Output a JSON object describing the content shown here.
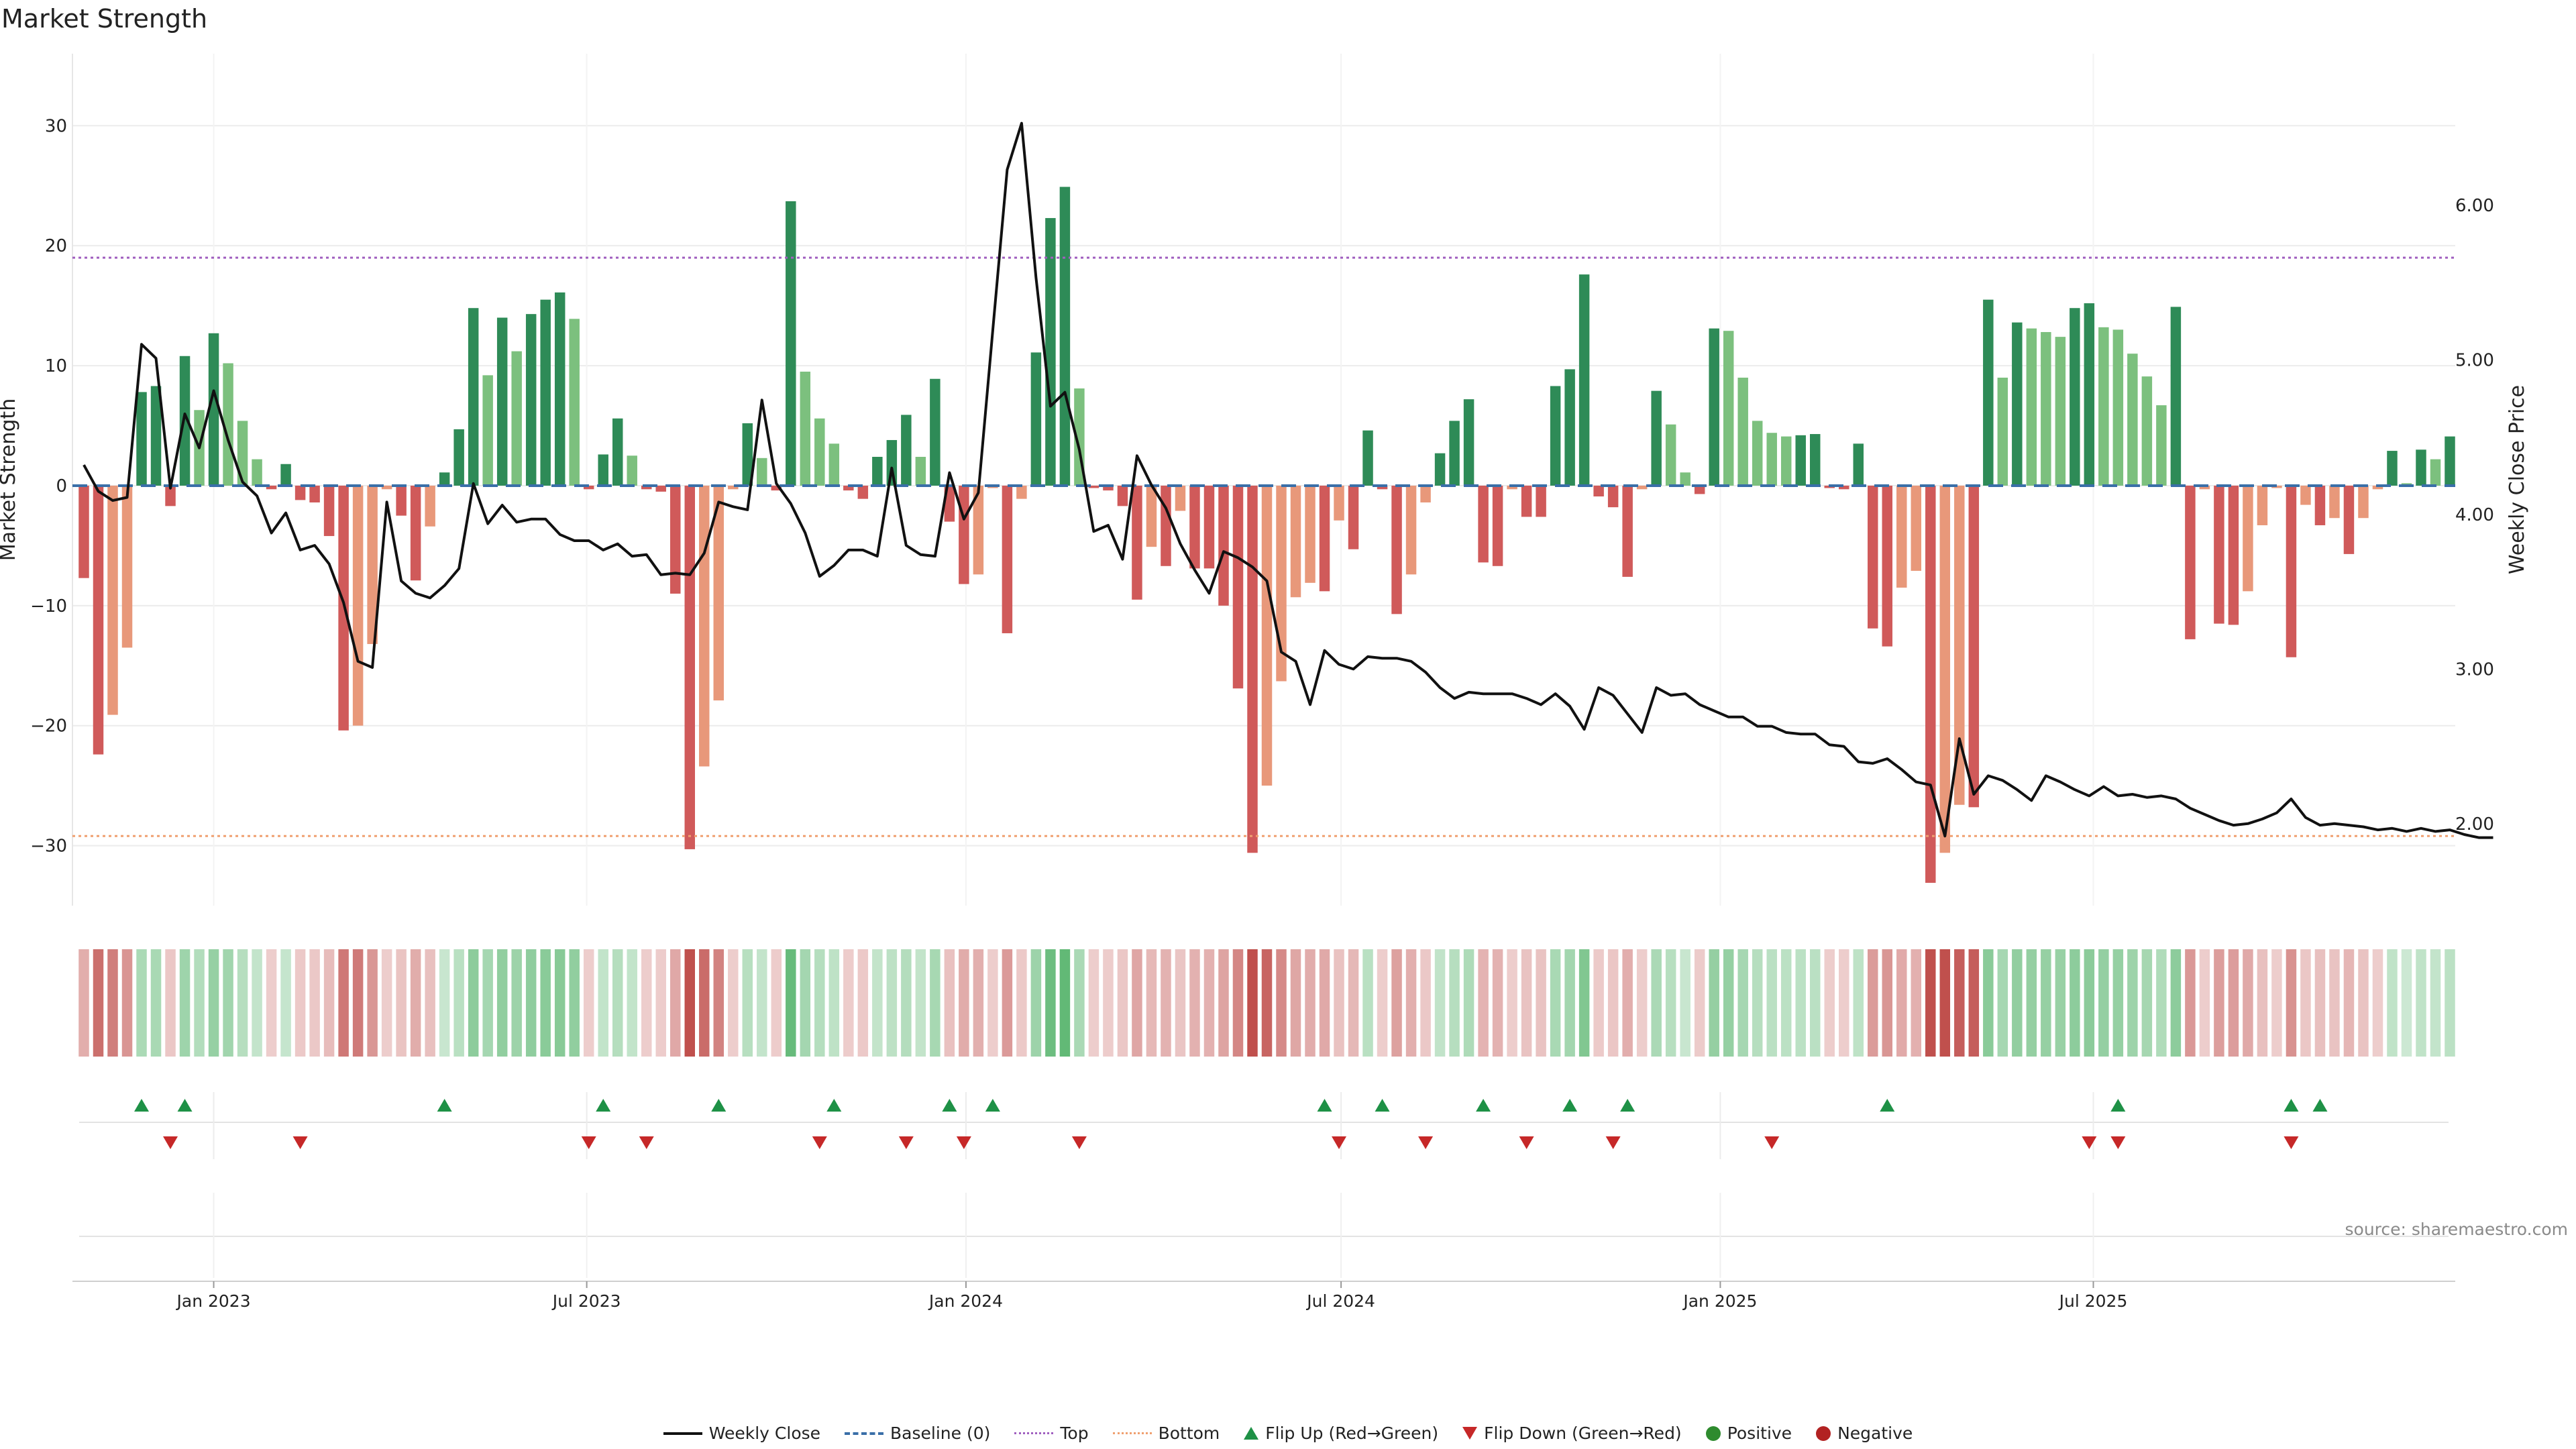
{
  "title": "Market Strength",
  "source": "source: sharemaestro.com",
  "colors": {
    "strong_pos": "#2e8b57",
    "weak_pos": "#7cc07e",
    "strong_neg": "#d05a5a",
    "weak_neg": "#e8987a",
    "top_line": "#a05fbf",
    "bottom_line": "#f0a070",
    "baseline": "#3a6fa8",
    "price_line": "#111111",
    "flip_up": "#1e9146",
    "flip_down": "#c62828",
    "positive": "#2e8b2e",
    "negative": "#b22222"
  },
  "chart_data": {
    "type": "bar",
    "title": "Market Strength",
    "ylabel": "Market Strength",
    "y2label": "Weekly Close Price",
    "ylim": [
      -35,
      36
    ],
    "y2lim": [
      1.47,
      6.98
    ],
    "yticks": [
      "30",
      "20",
      "10",
      "0",
      "−10",
      "−20",
      "−30"
    ],
    "y2ticks": [
      "6.00",
      "5.00",
      "4.00",
      "3.00",
      "2.00"
    ],
    "xticks": [
      "Jan 2023",
      "Jul 2023",
      "Jan 2024",
      "Jul 2024",
      "Jan 2025",
      "Jul 2025"
    ],
    "xtick_dates": [
      "2023-01-01",
      "2023-07-01",
      "2024-01-01",
      "2024-07-01",
      "2025-01-01",
      "2025-07-01"
    ],
    "start_week": "2022-10-30",
    "top": 19,
    "bottom": -29.2,
    "baseline": 0,
    "grid": true,
    "legend_position": "bottom",
    "legend": [
      "Weekly Close",
      "Baseline (0)",
      "Top",
      "Bottom",
      "Flip Up (Red→Green)",
      "Flip Down (Green→Red)",
      "Positive",
      "Negative"
    ],
    "series": [
      {
        "name": "Market Strength",
        "values": [
          -7.7,
          -22.4,
          -19.1,
          -13.5,
          7.8,
          8.3,
          -1.7,
          10.8,
          6.3,
          12.7,
          10.2,
          5.4,
          2.2,
          -0.3,
          1.8,
          -1.2,
          -1.4,
          -4.2,
          -20.4,
          -20,
          -13.2,
          -0.3,
          -2.5,
          -7.9,
          -3.4,
          1.1,
          4.7,
          14.8,
          9.2,
          14,
          11.2,
          14.3,
          15.5,
          16.1,
          13.9,
          -0.3,
          2.6,
          5.6,
          2.5,
          -0.3,
          -0.5,
          -9,
          -30.3,
          -23.4,
          -17.9,
          -0.3,
          5.2,
          2.3,
          -0.4,
          23.7,
          9.5,
          5.6,
          3.5,
          -0.4,
          -1.1,
          2.4,
          3.8,
          5.9,
          2.4,
          8.9,
          -3,
          -8.2,
          -7.4,
          -0.2,
          -12.3,
          -1.1,
          11.1,
          22.3,
          24.9,
          8.1,
          -0.2,
          -0.4,
          -1.7,
          -9.5,
          -5.1,
          -6.7,
          -2.1,
          -6.9,
          -6.9,
          -10,
          -16.9,
          -30.6,
          -25,
          -16.3,
          -9.3,
          -8.1,
          -8.8,
          -2.9,
          -5.3,
          4.6,
          -0.3,
          -10.7,
          -7.4,
          -1.4,
          2.7,
          5.4,
          7.2,
          -6.4,
          -6.7,
          -0.3,
          -2.6,
          -2.6,
          8.3,
          9.7,
          17.6,
          -0.9,
          -1.8,
          -7.6,
          -0.3,
          7.9,
          5.1,
          1.1,
          -0.7,
          13.1,
          12.9,
          9,
          5.4,
          4.4,
          4.1,
          4.2,
          4.3,
          -0.2,
          -0.3,
          3.5,
          -11.9,
          -13.4,
          -8.5,
          -7.1,
          -33.1,
          -30.6,
          -26.6,
          -26.8,
          15.5,
          9,
          13.6,
          13.1,
          12.8,
          12.4,
          14.8,
          15.2,
          13.2,
          13,
          11,
          9.1,
          6.7,
          14.9,
          -12.8,
          -0.3,
          -11.5,
          -11.6,
          -8.8,
          -3.3,
          -0.2,
          -14.3,
          -1.6,
          -3.3,
          -2.7,
          -5.7,
          -2.7,
          -0.3,
          2.9,
          0.2,
          3,
          2.2,
          4.1
        ]
      },
      {
        "name": "Weekly Close",
        "values": [
          4.32,
          4.15,
          4.09,
          4.11,
          5.1,
          5.01,
          4.17,
          4.65,
          4.43,
          4.8,
          4.48,
          4.21,
          4.12,
          3.88,
          4.01,
          3.77,
          3.8,
          3.68,
          3.43,
          3.05,
          3.01,
          4.08,
          3.57,
          3.49,
          3.46,
          3.54,
          3.65,
          4.2,
          3.94,
          4.06,
          3.95,
          3.97,
          3.97,
          3.87,
          3.83,
          3.83,
          3.77,
          3.81,
          3.73,
          3.74,
          3.61,
          3.62,
          3.61,
          3.75,
          4.08,
          4.05,
          4.03,
          4.74,
          4.2,
          4.07,
          3.88,
          3.6,
          3.67,
          3.77,
          3.77,
          3.73,
          4.3,
          3.8,
          3.74,
          3.73,
          4.27,
          3.97,
          4.14,
          5.19,
          6.23,
          6.53,
          5.53,
          4.7,
          4.79,
          4.42,
          3.89,
          3.93,
          3.71,
          4.38,
          4.19,
          4.04,
          3.81,
          3.64,
          3.49,
          3.76,
          3.72,
          3.66,
          3.57,
          3.11,
          3.05,
          2.77,
          3.12,
          3.03,
          3,
          3.08,
          3.07,
          3.07,
          3.05,
          2.98,
          2.88,
          2.81,
          2.85,
          2.84,
          2.84,
          2.84,
          2.81,
          2.77,
          2.84,
          2.76,
          2.61,
          2.88,
          2.83,
          2.71,
          2.59,
          2.88,
          2.83,
          2.84,
          2.77,
          2.73,
          2.69,
          2.69,
          2.63,
          2.63,
          2.59,
          2.58,
          2.58,
          2.51,
          2.5,
          2.4,
          2.39,
          2.42,
          2.35,
          2.27,
          2.25,
          1.92,
          2.55,
          2.19,
          2.31,
          2.28,
          2.22,
          2.15,
          2.31,
          2.27,
          2.22,
          2.18,
          2.24,
          2.18,
          2.19,
          2.17,
          2.18,
          2.16,
          2.1,
          2.06,
          2.02,
          1.99,
          2,
          2.03,
          2.07,
          2.16,
          2.04,
          1.99,
          2,
          1.99,
          1.98,
          1.96,
          1.97,
          1.95,
          1.97,
          1.95,
          1.96,
          1.93,
          1.91,
          1.91
        ]
      }
    ],
    "flip_up_weeks": [
      4,
      7,
      25,
      36,
      44,
      52,
      60,
      63,
      86,
      90,
      97,
      103,
      107,
      125,
      141,
      153,
      155
    ],
    "flip_down_weeks": [
      6,
      15,
      35,
      39,
      51,
      57,
      61,
      69,
      87,
      93,
      100,
      106,
      117,
      139,
      141,
      153
    ]
  },
  "legend": {
    "weekly_close": "Weekly Close",
    "baseline": "Baseline (0)",
    "top": "Top",
    "bottom": "Bottom",
    "flip_up": "Flip Up (Red→Green)",
    "flip_down": "Flip Down (Green→Red)",
    "positive": "Positive",
    "negative": "Negative"
  }
}
